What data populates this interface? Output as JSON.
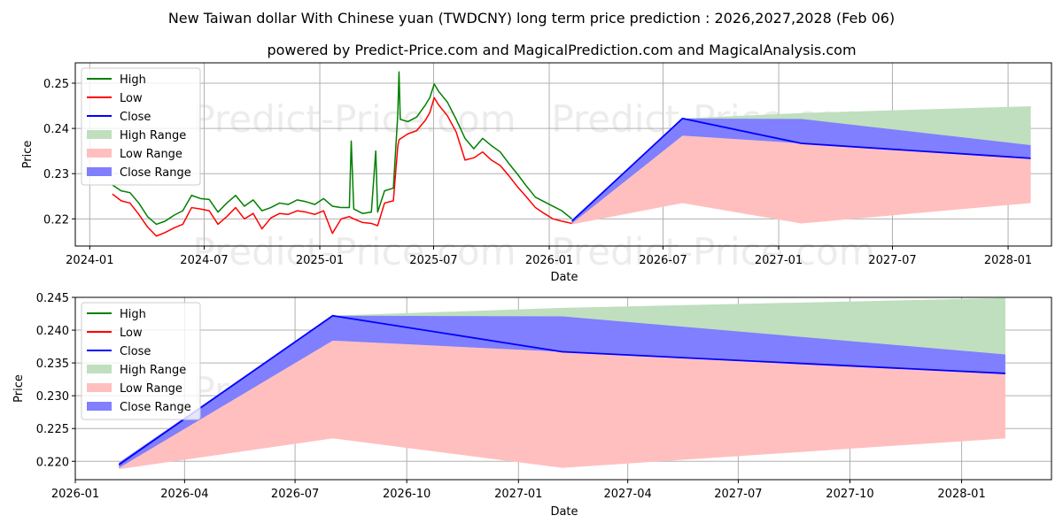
{
  "title": "New Taiwan dollar With Chinese yuan (TWDCNY) long term price prediction : 2026,2027,2028 (Feb 06)",
  "subtitle": "powered by Predict-Price.com and MagicalPrediction.com and MagicalAnalysis.com",
  "watermark": "Predict-Price.com",
  "colors": {
    "high": "#008000",
    "low": "#ff0000",
    "close": "#0000ff",
    "high_range": "#bfdfbf",
    "low_range": "#ffbfbf",
    "close_range": "#7f7fff"
  },
  "chart_data": [
    {
      "type": "line",
      "name": "history-and-forecast",
      "xlabel": "Date",
      "ylabel": "Price",
      "xlim": [
        "2023-12-09",
        "2028-03-10"
      ],
      "ylim": [
        0.214,
        0.2545
      ],
      "xticks": [
        {
          "date": "2024-01-01",
          "label": "2024-01"
        },
        {
          "date": "2024-07-01",
          "label": "2024-07"
        },
        {
          "date": "2025-01-01",
          "label": "2025-01"
        },
        {
          "date": "2025-07-01",
          "label": "2025-07"
        },
        {
          "date": "2026-01-01",
          "label": "2026-01"
        },
        {
          "date": "2026-07-01",
          "label": "2026-07"
        },
        {
          "date": "2027-01-01",
          "label": "2027-01"
        },
        {
          "date": "2027-07-01",
          "label": "2027-07"
        },
        {
          "date": "2028-01-01",
          "label": "2028-01"
        }
      ],
      "yticks": [
        {
          "value": 0.22,
          "label": "0.22"
        },
        {
          "value": 0.23,
          "label": "0.23"
        },
        {
          "value": 0.24,
          "label": "0.24"
        },
        {
          "value": 0.25,
          "label": "0.25"
        }
      ],
      "legend": [
        "High",
        "Low",
        "Close",
        "High Range",
        "Low Range",
        "Close Range"
      ],
      "legend_position": "top-left",
      "history": {
        "high": [
          [
            "2024-02-06",
            0.2275
          ],
          [
            "2024-02-20",
            0.2262
          ],
          [
            "2024-03-05",
            0.2258
          ],
          [
            "2024-03-19",
            0.2235
          ],
          [
            "2024-04-02",
            0.2205
          ],
          [
            "2024-04-16",
            0.2188
          ],
          [
            "2024-04-30",
            0.2195
          ],
          [
            "2024-05-14",
            0.2208
          ],
          [
            "2024-05-28",
            0.2218
          ],
          [
            "2024-06-11",
            0.2252
          ],
          [
            "2024-06-25",
            0.2245
          ],
          [
            "2024-07-09",
            0.2243
          ],
          [
            "2024-07-23",
            0.2215
          ],
          [
            "2024-08-06",
            0.2235
          ],
          [
            "2024-08-20",
            0.2252
          ],
          [
            "2024-09-03",
            0.2228
          ],
          [
            "2024-09-17",
            0.2242
          ],
          [
            "2024-10-01",
            0.2218
          ],
          [
            "2024-10-15",
            0.2225
          ],
          [
            "2024-10-29",
            0.2235
          ],
          [
            "2024-11-12",
            0.2232
          ],
          [
            "2024-11-26",
            0.2242
          ],
          [
            "2024-12-10",
            0.2238
          ],
          [
            "2024-12-24",
            0.2232
          ],
          [
            "2025-01-07",
            0.2245
          ],
          [
            "2025-01-21",
            0.2228
          ],
          [
            "2025-02-04",
            0.2225
          ],
          [
            "2025-02-17",
            0.2225
          ],
          [
            "2025-02-20",
            0.2372
          ],
          [
            "2025-02-24",
            0.2222
          ],
          [
            "2025-03-10",
            0.2212
          ],
          [
            "2025-03-24",
            0.2215
          ],
          [
            "2025-03-31",
            0.235
          ],
          [
            "2025-04-03",
            0.2215
          ],
          [
            "2025-04-14",
            0.2262
          ],
          [
            "2025-04-28",
            0.2268
          ],
          [
            "2025-05-05",
            0.243
          ],
          [
            "2025-05-07",
            0.2525
          ],
          [
            "2025-05-09",
            0.242
          ],
          [
            "2025-05-21",
            0.2415
          ],
          [
            "2025-06-04",
            0.2425
          ],
          [
            "2025-06-18",
            0.2452
          ],
          [
            "2025-06-25",
            0.2468
          ],
          [
            "2025-07-02",
            0.2498
          ],
          [
            "2025-07-09",
            0.2482
          ],
          [
            "2025-07-23",
            0.2458
          ],
          [
            "2025-08-06",
            0.242
          ],
          [
            "2025-08-20",
            0.2378
          ],
          [
            "2025-09-03",
            0.2355
          ],
          [
            "2025-09-17",
            0.2378
          ],
          [
            "2025-10-01",
            0.2362
          ],
          [
            "2025-10-15",
            0.2348
          ],
          [
            "2025-10-29",
            0.2322
          ],
          [
            "2025-11-12",
            0.2298
          ],
          [
            "2025-11-26",
            0.2272
          ],
          [
            "2025-12-10",
            0.2248
          ],
          [
            "2025-12-24",
            0.2238
          ],
          [
            "2026-01-07",
            0.2228
          ],
          [
            "2026-01-21",
            0.2218
          ],
          [
            "2026-02-06",
            0.22
          ]
        ],
        "low": [
          [
            "2024-02-06",
            0.2255
          ],
          [
            "2024-02-20",
            0.224
          ],
          [
            "2024-03-05",
            0.2235
          ],
          [
            "2024-03-19",
            0.221
          ],
          [
            "2024-04-02",
            0.2182
          ],
          [
            "2024-04-16",
            0.2162
          ],
          [
            "2024-04-30",
            0.217
          ],
          [
            "2024-05-14",
            0.218
          ],
          [
            "2024-05-28",
            0.2188
          ],
          [
            "2024-06-11",
            0.2225
          ],
          [
            "2024-06-25",
            0.2222
          ],
          [
            "2024-07-09",
            0.2218
          ],
          [
            "2024-07-23",
            0.2188
          ],
          [
            "2024-08-06",
            0.2205
          ],
          [
            "2024-08-20",
            0.2225
          ],
          [
            "2024-09-03",
            0.22
          ],
          [
            "2024-09-17",
            0.2212
          ],
          [
            "2024-10-01",
            0.2178
          ],
          [
            "2024-10-15",
            0.2202
          ],
          [
            "2024-10-29",
            0.2212
          ],
          [
            "2024-11-12",
            0.221
          ],
          [
            "2024-11-26",
            0.2218
          ],
          [
            "2024-12-10",
            0.2215
          ],
          [
            "2024-12-24",
            0.221
          ],
          [
            "2025-01-07",
            0.2218
          ],
          [
            "2025-01-21",
            0.2168
          ],
          [
            "2025-02-04",
            0.22
          ],
          [
            "2025-02-17",
            0.2205
          ],
          [
            "2025-02-24",
            0.22
          ],
          [
            "2025-03-10",
            0.2192
          ],
          [
            "2025-03-24",
            0.219
          ],
          [
            "2025-04-03",
            0.2185
          ],
          [
            "2025-04-14",
            0.2235
          ],
          [
            "2025-04-28",
            0.224
          ],
          [
            "2025-05-05",
            0.236
          ],
          [
            "2025-05-07",
            0.2375
          ],
          [
            "2025-05-21",
            0.2388
          ],
          [
            "2025-06-04",
            0.2395
          ],
          [
            "2025-06-18",
            0.2418
          ],
          [
            "2025-06-25",
            0.2435
          ],
          [
            "2025-07-02",
            0.2468
          ],
          [
            "2025-07-09",
            0.2452
          ],
          [
            "2025-07-23",
            0.2428
          ],
          [
            "2025-08-06",
            0.2392
          ],
          [
            "2025-08-20",
            0.233
          ],
          [
            "2025-09-03",
            0.2335
          ],
          [
            "2025-09-17",
            0.2348
          ],
          [
            "2025-10-01",
            0.233
          ],
          [
            "2025-10-15",
            0.2318
          ],
          [
            "2025-10-29",
            0.2295
          ],
          [
            "2025-11-12",
            0.227
          ],
          [
            "2025-11-26",
            0.2248
          ],
          [
            "2025-12-10",
            0.2225
          ],
          [
            "2025-12-24",
            0.2212
          ],
          [
            "2026-01-07",
            0.22
          ],
          [
            "2026-01-21",
            0.2195
          ],
          [
            "2026-02-06",
            0.219
          ]
        ]
      },
      "forecast": {
        "dates": [
          "2026-02-06",
          "2026-08-01",
          "2027-02-06",
          "2028-02-06"
        ],
        "close": [
          0.2195,
          0.2422,
          0.2367,
          0.2334
        ],
        "high_range": [
          [
            0.219,
            0.2198
          ],
          [
            0.2384,
            0.2422
          ],
          [
            0.2367,
            0.2434
          ],
          [
            0.2363,
            0.2449
          ]
        ],
        "low_range": [
          [
            0.2188,
            0.2195
          ],
          [
            0.2235,
            0.2384
          ],
          [
            0.219,
            0.2367
          ],
          [
            0.2235,
            0.2334
          ]
        ],
        "close_range": [
          [
            0.219,
            0.2198
          ],
          [
            0.2384,
            0.2422
          ],
          [
            0.2367,
            0.2421
          ],
          [
            0.2334,
            0.2363
          ]
        ]
      }
    },
    {
      "type": "line",
      "name": "forecast-zoom",
      "xlabel": "Date",
      "ylabel": "Price",
      "xlim": [
        "2026-01-01",
        "2028-03-15"
      ],
      "ylim": [
        0.2172,
        0.245
      ],
      "xticks": [
        {
          "date": "2026-01-01",
          "label": "2026-01"
        },
        {
          "date": "2026-04-01",
          "label": "2026-04"
        },
        {
          "date": "2026-07-01",
          "label": "2026-07"
        },
        {
          "date": "2026-10-01",
          "label": "2026-10"
        },
        {
          "date": "2027-01-01",
          "label": "2027-01"
        },
        {
          "date": "2027-04-01",
          "label": "2027-04"
        },
        {
          "date": "2027-07-01",
          "label": "2027-07"
        },
        {
          "date": "2027-10-01",
          "label": "2027-10"
        },
        {
          "date": "2028-01-01",
          "label": "2028-01"
        }
      ],
      "yticks": [
        {
          "value": 0.22,
          "label": "0.220"
        },
        {
          "value": 0.225,
          "label": "0.225"
        },
        {
          "value": 0.23,
          "label": "0.230"
        },
        {
          "value": 0.235,
          "label": "0.235"
        },
        {
          "value": 0.24,
          "label": "0.240"
        },
        {
          "value": 0.245,
          "label": "0.245"
        }
      ],
      "legend": [
        "High",
        "Low",
        "Close",
        "High Range",
        "Low Range",
        "Close Range"
      ],
      "legend_position": "top-left",
      "forecast": {
        "dates": [
          "2026-02-06",
          "2026-08-01",
          "2027-02-06",
          "2028-02-06"
        ],
        "close": [
          0.2195,
          0.2422,
          0.2367,
          0.2334
        ],
        "high_range": [
          [
            0.219,
            0.2198
          ],
          [
            0.2384,
            0.2422
          ],
          [
            0.2367,
            0.2434
          ],
          [
            0.2363,
            0.2449
          ]
        ],
        "low_range": [
          [
            0.2188,
            0.2195
          ],
          [
            0.2235,
            0.2384
          ],
          [
            0.219,
            0.2367
          ],
          [
            0.2235,
            0.2334
          ]
        ],
        "close_range": [
          [
            0.219,
            0.2198
          ],
          [
            0.2384,
            0.2422
          ],
          [
            0.2367,
            0.2421
          ],
          [
            0.2334,
            0.2363
          ]
        ]
      }
    }
  ]
}
